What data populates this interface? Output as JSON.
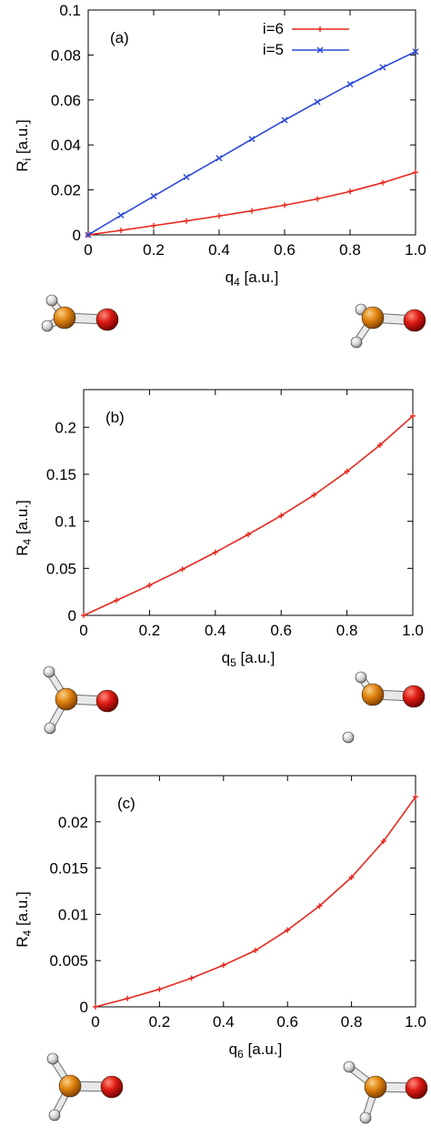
{
  "colors": {
    "red": "#e8281e",
    "blue": "#2b49d8",
    "orange": "#e0830e",
    "oxygen": "#dc1a12",
    "hydrogen": "#d4d4d4"
  },
  "icons": [
    "molecule-start",
    "molecule-end"
  ],
  "chart_data": [
    {
      "type": "line",
      "panel_label": "(a)",
      "xlabel": {
        "main": "q",
        "sub": "4",
        "unit": " [a.u.]"
      },
      "ylabel": {
        "main": "R",
        "sub": "i",
        "unit": " [a.u.]"
      },
      "xlim": [
        0,
        1.0
      ],
      "ylim": [
        0,
        0.1
      ],
      "xticks": [
        "0",
        "0.2",
        "0.4",
        "0.6",
        "0.8",
        "1.0"
      ],
      "yticks": [
        "0",
        "0.02",
        "0.04",
        "0.06",
        "0.08",
        "0.1"
      ],
      "legend_position": "top-right",
      "x": [
        0,
        0.1,
        0.2,
        0.3,
        0.4,
        0.5,
        0.6,
        0.7,
        0.8,
        0.9,
        1.0
      ],
      "series": [
        {
          "name": "i=6",
          "color": "#e8281e",
          "marker": "plus",
          "values": [
            0,
            0.002,
            0.0041,
            0.0062,
            0.0084,
            0.0107,
            0.0132,
            0.016,
            0.0193,
            0.0232,
            0.0278
          ]
        },
        {
          "name": "i=5",
          "color": "#2b49d8",
          "marker": "cross",
          "values": [
            0,
            0.0087,
            0.0172,
            0.0257,
            0.0341,
            0.0426,
            0.051,
            0.0591,
            0.067,
            0.0745,
            0.0815
          ]
        }
      ],
      "molecules": [
        "start-geometry",
        "end-geometry"
      ]
    },
    {
      "type": "line",
      "panel_label": "(b)",
      "xlabel": {
        "main": "q",
        "sub": "5",
        "unit": " [a.u.]"
      },
      "ylabel": {
        "main": "R",
        "sub": "4",
        "unit": " [a.u.]"
      },
      "xlim": [
        0,
        1.0
      ],
      "ylim": [
        0,
        0.24
      ],
      "xticks": [
        "0",
        "0.2",
        "0.4",
        "0.6",
        "0.8",
        "1.0"
      ],
      "ytick_values": [
        0,
        0.05,
        0.1,
        0.15,
        0.2
      ],
      "yticks": [
        "0",
        "0.05",
        "0.1",
        "0.15",
        "0.2"
      ],
      "x": [
        0,
        0.1,
        0.2,
        0.3,
        0.4,
        0.5,
        0.6,
        0.7,
        0.8,
        0.9,
        1.0
      ],
      "series": [
        {
          "color": "#e8281e",
          "marker": "plus",
          "values": [
            0,
            0.016,
            0.032,
            0.049,
            0.067,
            0.086,
            0.106,
            0.128,
            0.153,
            0.181,
            0.212
          ]
        }
      ],
      "molecules": [
        "start-geometry",
        "end-geometry"
      ]
    },
    {
      "type": "line",
      "panel_label": "(c)",
      "xlabel": {
        "main": "q",
        "sub": "6",
        "unit": " [a.u.]"
      },
      "ylabel": {
        "main": "R",
        "sub": "4",
        "unit": " [a.u.]"
      },
      "xlim": [
        0,
        1.0
      ],
      "ylim": [
        0,
        0.025
      ],
      "xticks": [
        "0",
        "0.2",
        "0.4",
        "0.6",
        "0.8",
        "1.0"
      ],
      "ytick_values": [
        0,
        0.005,
        0.01,
        0.015,
        0.02
      ],
      "yticks": [
        "0",
        "0.005",
        "0.01",
        "0.015",
        "0.02"
      ],
      "x": [
        0,
        0.1,
        0.2,
        0.3,
        0.4,
        0.5,
        0.6,
        0.7,
        0.8,
        0.9,
        1.0
      ],
      "series": [
        {
          "color": "#e8281e",
          "marker": "plus",
          "values": [
            0,
            0.0009,
            0.0019,
            0.0031,
            0.0045,
            0.0061,
            0.0083,
            0.0109,
            0.014,
            0.0179,
            0.0227
          ]
        }
      ],
      "molecules": [
        "start-geometry",
        "end-geometry"
      ]
    }
  ]
}
